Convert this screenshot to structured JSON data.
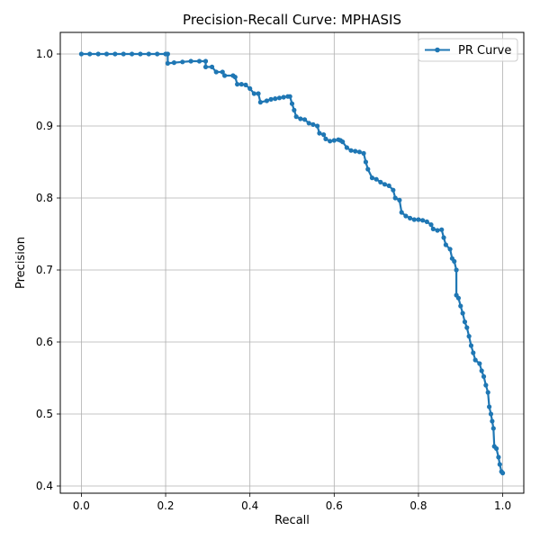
{
  "chart_data": {
    "type": "line",
    "title": "Precision-Recall Curve: MPHASIS",
    "xlabel": "Recall",
    "ylabel": "Precision",
    "xlim": [
      -0.05,
      1.05
    ],
    "ylim": [
      0.39,
      1.03
    ],
    "xticks": [
      0.0,
      0.2,
      0.4,
      0.6,
      0.8,
      1.0
    ],
    "xtick_labels": [
      "0.0",
      "0.2",
      "0.4",
      "0.6",
      "0.8",
      "1.0"
    ],
    "yticks": [
      0.4,
      0.5,
      0.6,
      0.7,
      0.8,
      0.9,
      1.0
    ],
    "ytick_labels": [
      "0.4",
      "0.5",
      "0.6",
      "0.7",
      "0.8",
      "0.9",
      "1.0"
    ],
    "grid": true,
    "legend_position": "top-right",
    "colors": {
      "series": "#1f77b4",
      "grid": "#b0b0b0"
    },
    "series": [
      {
        "name": "PR Curve",
        "marker": "circle",
        "points": [
          [
            0.0,
            1.0
          ],
          [
            0.02,
            1.0
          ],
          [
            0.04,
            1.0
          ],
          [
            0.06,
            1.0
          ],
          [
            0.08,
            1.0
          ],
          [
            0.1,
            1.0
          ],
          [
            0.12,
            1.0
          ],
          [
            0.14,
            1.0
          ],
          [
            0.16,
            1.0
          ],
          [
            0.18,
            1.0
          ],
          [
            0.2,
            1.0
          ],
          [
            0.205,
            1.0
          ],
          [
            0.205,
            0.987
          ],
          [
            0.22,
            0.988
          ],
          [
            0.24,
            0.989
          ],
          [
            0.26,
            0.99
          ],
          [
            0.28,
            0.99
          ],
          [
            0.295,
            0.99
          ],
          [
            0.295,
            0.982
          ],
          [
            0.31,
            0.982
          ],
          [
            0.32,
            0.975
          ],
          [
            0.335,
            0.975
          ],
          [
            0.34,
            0.97
          ],
          [
            0.36,
            0.97
          ],
          [
            0.365,
            0.968
          ],
          [
            0.37,
            0.958
          ],
          [
            0.38,
            0.958
          ],
          [
            0.39,
            0.957
          ],
          [
            0.4,
            0.952
          ],
          [
            0.41,
            0.945
          ],
          [
            0.42,
            0.945
          ],
          [
            0.425,
            0.933
          ],
          [
            0.44,
            0.935
          ],
          [
            0.45,
            0.937
          ],
          [
            0.46,
            0.938
          ],
          [
            0.47,
            0.939
          ],
          [
            0.48,
            0.94
          ],
          [
            0.49,
            0.941
          ],
          [
            0.495,
            0.941
          ],
          [
            0.5,
            0.931
          ],
          [
            0.505,
            0.922
          ],
          [
            0.51,
            0.913
          ],
          [
            0.52,
            0.91
          ],
          [
            0.53,
            0.909
          ],
          [
            0.54,
            0.904
          ],
          [
            0.55,
            0.902
          ],
          [
            0.56,
            0.9
          ],
          [
            0.565,
            0.89
          ],
          [
            0.575,
            0.888
          ],
          [
            0.58,
            0.882
          ],
          [
            0.59,
            0.879
          ],
          [
            0.6,
            0.88
          ],
          [
            0.61,
            0.881
          ],
          [
            0.615,
            0.88
          ],
          [
            0.62,
            0.878
          ],
          [
            0.63,
            0.87
          ],
          [
            0.64,
            0.866
          ],
          [
            0.65,
            0.865
          ],
          [
            0.66,
            0.864
          ],
          [
            0.67,
            0.862
          ],
          [
            0.675,
            0.85
          ],
          [
            0.68,
            0.84
          ],
          [
            0.69,
            0.828
          ],
          [
            0.7,
            0.826
          ],
          [
            0.71,
            0.822
          ],
          [
            0.72,
            0.819
          ],
          [
            0.73,
            0.817
          ],
          [
            0.74,
            0.811
          ],
          [
            0.745,
            0.8
          ],
          [
            0.755,
            0.797
          ],
          [
            0.76,
            0.78
          ],
          [
            0.77,
            0.775
          ],
          [
            0.78,
            0.772
          ],
          [
            0.79,
            0.77
          ],
          [
            0.8,
            0.77
          ],
          [
            0.81,
            0.769
          ],
          [
            0.82,
            0.767
          ],
          [
            0.83,
            0.763
          ],
          [
            0.835,
            0.757
          ],
          [
            0.845,
            0.755
          ],
          [
            0.855,
            0.756
          ],
          [
            0.86,
            0.745
          ],
          [
            0.865,
            0.735
          ],
          [
            0.875,
            0.729
          ],
          [
            0.88,
            0.716
          ],
          [
            0.885,
            0.712
          ],
          [
            0.89,
            0.7
          ],
          [
            0.89,
            0.665
          ],
          [
            0.895,
            0.661
          ],
          [
            0.9,
            0.65
          ],
          [
            0.905,
            0.64
          ],
          [
            0.91,
            0.628
          ],
          [
            0.915,
            0.62
          ],
          [
            0.92,
            0.608
          ],
          [
            0.925,
            0.595
          ],
          [
            0.93,
            0.585
          ],
          [
            0.935,
            0.575
          ],
          [
            0.945,
            0.57
          ],
          [
            0.95,
            0.56
          ],
          [
            0.955,
            0.552
          ],
          [
            0.96,
            0.54
          ],
          [
            0.965,
            0.53
          ],
          [
            0.968,
            0.51
          ],
          [
            0.972,
            0.5
          ],
          [
            0.975,
            0.49
          ],
          [
            0.978,
            0.48
          ],
          [
            0.98,
            0.455
          ],
          [
            0.985,
            0.452
          ],
          [
            0.99,
            0.44
          ],
          [
            0.993,
            0.43
          ],
          [
            0.997,
            0.42
          ],
          [
            1.0,
            0.418
          ]
        ]
      }
    ]
  }
}
